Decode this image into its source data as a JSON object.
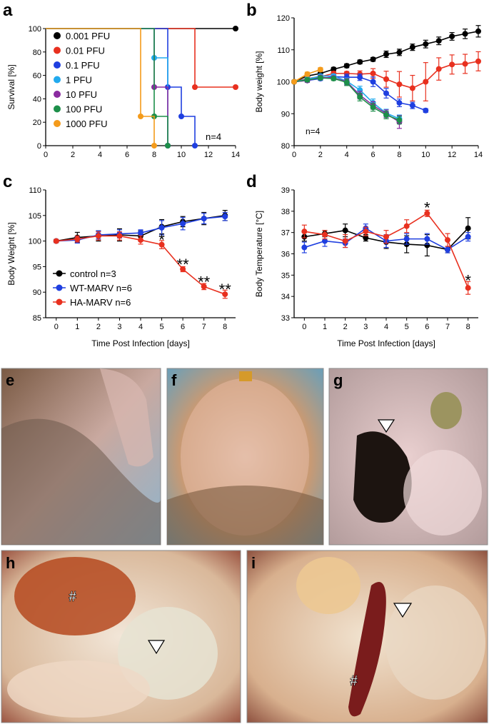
{
  "panels": {
    "a": "a",
    "b": "b",
    "c": "c",
    "d": "d",
    "e": "e",
    "f": "f",
    "g": "g",
    "h": "h",
    "i": "i"
  },
  "photo_marks": {
    "h_hash": "#",
    "i_hash": "#"
  },
  "colors": {
    "black": "#000000",
    "red": "#e8301f",
    "blue": "#1f3fe0",
    "lightblue": "#22aaee",
    "purple": "#8a2ba0",
    "green": "#1d8f4a",
    "orange": "#f49b1b"
  },
  "chart_data": [
    {
      "panel": "a",
      "type": "line",
      "xlabel": "",
      "ylabel": "Survival [%]",
      "xlim": [
        0,
        14
      ],
      "ylim": [
        0,
        100
      ],
      "xticks": [
        "0",
        "2",
        "4",
        "6",
        "8",
        "10",
        "12",
        "14"
      ],
      "yticks": [
        "0",
        "20",
        "40",
        "60",
        "80",
        "100"
      ],
      "annotation": "n=4",
      "legend_position": "top-left",
      "series": [
        {
          "name": "0.001 PFU",
          "color": "#000000",
          "x": [
            0,
            14
          ],
          "y": [
            100,
            100
          ]
        },
        {
          "name": "0.01 PFU",
          "color": "#e8301f",
          "x": [
            0,
            11,
            14
          ],
          "y": [
            100,
            50,
            50
          ]
        },
        {
          "name": "0.1 PFU",
          "color": "#1f3fe0",
          "x": [
            0,
            9,
            10,
            11
          ],
          "y": [
            100,
            50,
            25,
            0
          ]
        },
        {
          "name": "1 PFU",
          "color": "#22aaee",
          "x": [
            0,
            8,
            9
          ],
          "y": [
            100,
            75,
            0
          ]
        },
        {
          "name": "10 PFU",
          "color": "#8a2ba0",
          "x": [
            0,
            8,
            9
          ],
          "y": [
            100,
            50,
            0
          ]
        },
        {
          "name": "100 PFU",
          "color": "#1d8f4a",
          "x": [
            0,
            8,
            9
          ],
          "y": [
            100,
            25,
            0
          ]
        },
        {
          "name": "1000 PFU",
          "color": "#f49b1b",
          "x": [
            0,
            7,
            8
          ],
          "y": [
            100,
            25,
            0
          ]
        }
      ]
    },
    {
      "panel": "b",
      "type": "line",
      "xlabel": "",
      "ylabel": "Body weight [%]",
      "xlim": [
        0,
        14
      ],
      "ylim": [
        80,
        120
      ],
      "xticks": [
        "0",
        "2",
        "4",
        "6",
        "8",
        "10",
        "12",
        "14"
      ],
      "yticks": [
        "80",
        "90",
        "100",
        "110",
        "120"
      ],
      "annotation": "n=4",
      "series": [
        {
          "color": "#000000",
          "x": [
            0,
            1,
            2,
            3,
            4,
            5,
            6,
            7,
            8,
            9,
            10,
            11,
            12,
            13,
            14
          ],
          "y": [
            100,
            101.8,
            102.6,
            103.9,
            105,
            106.2,
            107,
            108.6,
            109.2,
            110.8,
            111.8,
            112.8,
            114.2,
            115,
            115.8
          ],
          "err": [
            0.3,
            0.6,
            0.6,
            0.6,
            0.6,
            0.6,
            0.6,
            1.0,
            1.0,
            1.0,
            1.2,
            1.2,
            1.2,
            1.5,
            1.8
          ]
        },
        {
          "color": "#e8301f",
          "x": [
            0,
            1,
            2,
            3,
            4,
            5,
            6,
            7,
            8,
            9,
            10,
            11,
            12,
            13,
            14
          ],
          "y": [
            100,
            101,
            101.6,
            102.6,
            102.6,
            102.4,
            102.6,
            100.8,
            99.2,
            98,
            100,
            104,
            105.4,
            105.6,
            106.4
          ],
          "err": [
            0.3,
            0.6,
            0.6,
            0.6,
            0.6,
            1.0,
            1.5,
            2.5,
            4.0,
            4.0,
            6.0,
            3.5,
            3.0,
            3.0,
            3.0
          ]
        },
        {
          "color": "#1f3fe0",
          "x": [
            0,
            1,
            2,
            3,
            4,
            5,
            6,
            7,
            8,
            9,
            10
          ],
          "y": [
            100,
            100.4,
            101,
            101.6,
            101.4,
            101.4,
            100,
            96.4,
            93.4,
            92.6,
            91
          ],
          "err": [
            0.3,
            0.6,
            0.6,
            0.6,
            1.0,
            1.0,
            1.5,
            1.5,
            1.2,
            1.0,
            0.6
          ]
        },
        {
          "color": "#22aaee",
          "x": [
            0,
            1,
            2,
            3,
            4,
            5,
            6,
            7,
            8
          ],
          "y": [
            100,
            100.8,
            101.8,
            101.8,
            100.2,
            97.4,
            93.4,
            90.2,
            88.4
          ],
          "err": [
            0.3,
            0.6,
            0.6,
            0.6,
            1.0,
            1.2,
            1.2,
            1.2,
            1.2
          ]
        },
        {
          "color": "#8a2ba0",
          "x": [
            0,
            1,
            2,
            3,
            4,
            5,
            6,
            7,
            8
          ],
          "y": [
            100,
            100.4,
            101.4,
            101.2,
            100,
            95.8,
            92.6,
            90,
            87.4
          ],
          "err": [
            0.3,
            0.6,
            0.6,
            0.6,
            1.0,
            1.2,
            1.2,
            1.2,
            2.0
          ]
        },
        {
          "color": "#1d8f4a",
          "x": [
            0,
            1,
            2,
            3,
            4,
            5,
            6,
            7,
            8
          ],
          "y": [
            100,
            100.6,
            101.2,
            101,
            99.8,
            95.2,
            92,
            89.6,
            88
          ],
          "err": [
            0.3,
            0.6,
            0.6,
            0.6,
            1.0,
            1.2,
            1.2,
            1.2,
            1.2
          ]
        },
        {
          "color": "#f49b1b",
          "x": [
            0,
            1,
            2
          ],
          "y": [
            100,
            102.4,
            103.8
          ],
          "err": [
            0.3,
            0.6,
            0.6
          ]
        }
      ]
    },
    {
      "panel": "c",
      "type": "line",
      "xlabel": "Time Post Infection [days]",
      "ylabel": "Body Weight [%]",
      "xlim": [
        -0.5,
        8.5
      ],
      "ylim": [
        85,
        110
      ],
      "xticks": [
        "0",
        "1",
        "2",
        "3",
        "4",
        "5",
        "6",
        "7",
        "8"
      ],
      "yticks": [
        "85",
        "90",
        "95",
        "100",
        "105",
        "110"
      ],
      "legend_position": "bottom-left",
      "series": [
        {
          "name": "control n=3",
          "color": "#000000",
          "x": [
            0,
            1,
            2,
            3,
            4,
            5,
            6,
            7,
            8
          ],
          "y": [
            100,
            100.7,
            101,
            101.2,
            101,
            102.8,
            103.8,
            104.4,
            105
          ],
          "err": [
            0.3,
            1.0,
            1.0,
            1.2,
            1.0,
            1.4,
            1.0,
            1.2,
            1.0
          ]
        },
        {
          "name": "WT-MARV n=6",
          "color": "#1f3fe0",
          "x": [
            0,
            1,
            2,
            3,
            4,
            5,
            6,
            7,
            8
          ],
          "y": [
            100,
            100.2,
            101.2,
            101.4,
            101.6,
            102.6,
            103.4,
            104.4,
            104.8
          ],
          "err": [
            0.3,
            0.6,
            0.8,
            0.8,
            0.6,
            1.4,
            1.2,
            1.0,
            0.8
          ]
        },
        {
          "name": "HA-MARV n=6",
          "color": "#e8301f",
          "x": [
            0,
            1,
            2,
            3,
            4,
            5,
            6,
            7,
            8
          ],
          "y": [
            100,
            100.4,
            101,
            101,
            100.2,
            99.3,
            94.5,
            91.1,
            89.6
          ],
          "err": [
            0.3,
            0.6,
            0.8,
            0.8,
            0.8,
            0.8,
            0.5,
            0.6,
            0.8
          ]
        }
      ],
      "significance": [
        {
          "x": 5,
          "label": "*"
        },
        {
          "x": 6,
          "label": "**"
        },
        {
          "x": 7,
          "label": "**"
        },
        {
          "x": 8,
          "label": "**"
        }
      ]
    },
    {
      "panel": "d",
      "type": "line",
      "xlabel": "Time Post Infection [days]",
      "ylabel": "Body Temperature [°C]",
      "xlim": [
        -0.5,
        8.5
      ],
      "ylim": [
        33,
        39
      ],
      "xticks": [
        "0",
        "1",
        "2",
        "3",
        "4",
        "5",
        "6",
        "7",
        "8"
      ],
      "yticks": [
        "33",
        "34",
        "35",
        "36",
        "37",
        "38",
        "39"
      ],
      "series": [
        {
          "color": "#000000",
          "x": [
            0,
            1,
            2,
            3,
            4,
            5,
            6,
            7,
            8
          ],
          "y": [
            36.8,
            36.95,
            37.1,
            36.75,
            36.55,
            36.45,
            36.4,
            36.2,
            37.2
          ],
          "err": [
            0.2,
            0.15,
            0.3,
            0.15,
            0.3,
            0.4,
            0.5,
            0.15,
            0.5
          ]
        },
        {
          "color": "#1f3fe0",
          "x": [
            0,
            1,
            2,
            3,
            4,
            5,
            6,
            7,
            8
          ],
          "y": [
            36.3,
            36.6,
            36.5,
            37.2,
            36.6,
            36.7,
            36.7,
            36.2,
            36.8
          ],
          "err": [
            0.25,
            0.25,
            0.2,
            0.2,
            0.3,
            0.25,
            0.25,
            0.15,
            0.2
          ]
        },
        {
          "color": "#e8301f",
          "x": [
            0,
            1,
            2,
            3,
            4,
            5,
            6,
            7,
            8
          ],
          "y": [
            37.05,
            36.9,
            36.6,
            37.05,
            36.8,
            37.3,
            37.9,
            36.65,
            34.4
          ],
          "err": [
            0.3,
            0.2,
            0.3,
            0.2,
            0.3,
            0.3,
            0.15,
            0.3,
            0.3
          ]
        }
      ],
      "significance": [
        {
          "x": 6,
          "label": "*"
        },
        {
          "x": 8,
          "label": "*"
        }
      ]
    }
  ]
}
